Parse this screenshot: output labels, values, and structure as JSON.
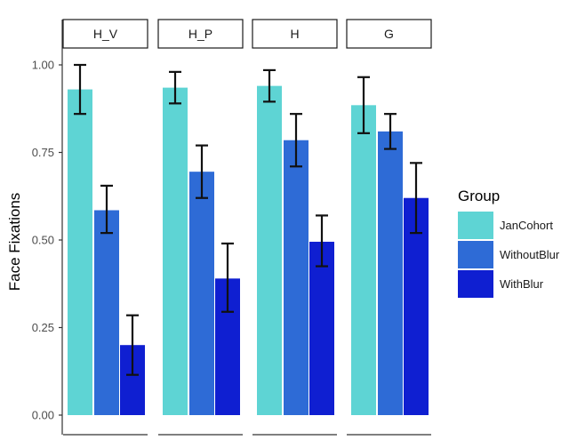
{
  "chart_data": {
    "type": "bar",
    "facets": [
      "H_V",
      "H_P",
      "H",
      "G"
    ],
    "ylabel": "Face Fixations",
    "ylim": [
      0,
      1.0
    ],
    "yticks": [
      0.0,
      0.25,
      0.5,
      0.75,
      1.0
    ],
    "ytick_labels": [
      "0.00",
      "0.25",
      "0.50",
      "0.75",
      "1.00"
    ],
    "legend": {
      "title": "Group",
      "position": "right"
    },
    "grid": false,
    "series": [
      {
        "name": "JanCohort",
        "color": "#5ED4D4",
        "values": [
          0.93,
          0.935,
          0.94,
          0.885
        ],
        "err_low": [
          0.86,
          0.89,
          0.895,
          0.805
        ],
        "err_high": [
          1.0,
          0.98,
          0.985,
          0.965
        ]
      },
      {
        "name": "WithoutBlur",
        "color": "#2E6BD6",
        "values": [
          0.585,
          0.695,
          0.785,
          0.81
        ],
        "err_low": [
          0.52,
          0.62,
          0.71,
          0.76
        ],
        "err_high": [
          0.655,
          0.77,
          0.86,
          0.86
        ]
      },
      {
        "name": "WithBlur",
        "color": "#0F1FD1",
        "values": [
          0.2,
          0.39,
          0.495,
          0.62
        ],
        "err_low": [
          0.115,
          0.295,
          0.425,
          0.52
        ],
        "err_high": [
          0.285,
          0.49,
          0.57,
          0.72
        ]
      }
    ]
  }
}
